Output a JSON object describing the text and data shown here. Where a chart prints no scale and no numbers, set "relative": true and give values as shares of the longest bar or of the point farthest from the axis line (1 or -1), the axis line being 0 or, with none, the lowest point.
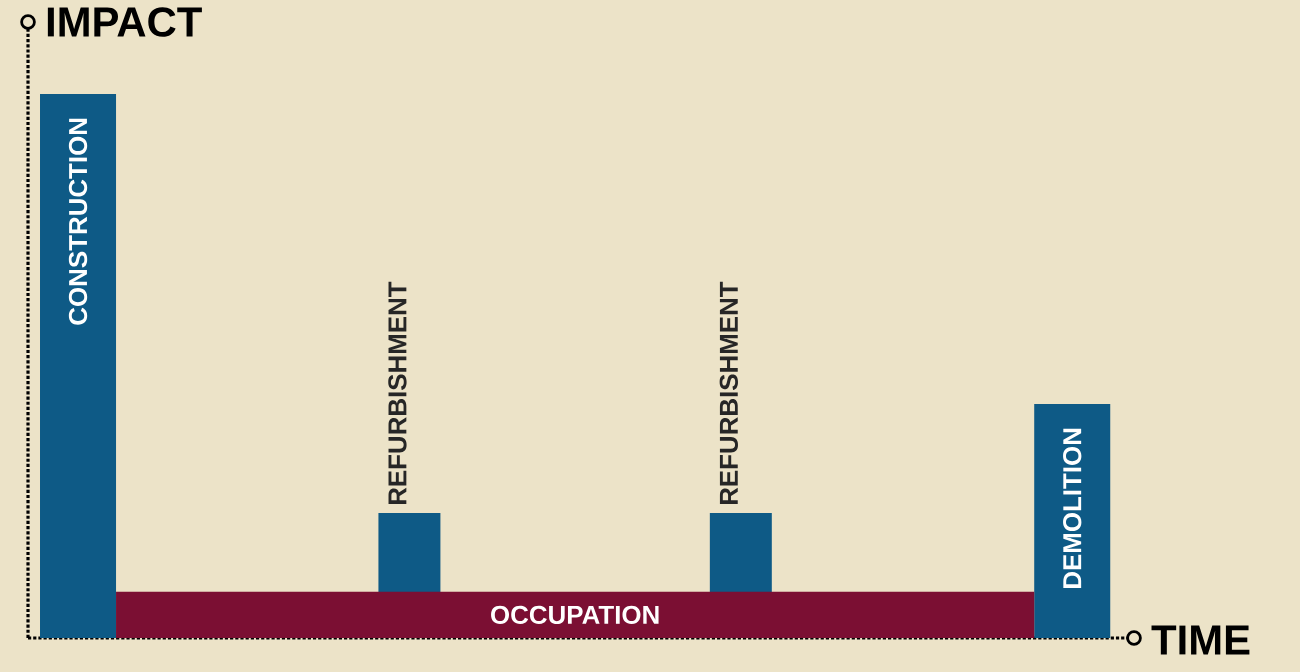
{
  "chart_data": {
    "type": "bar",
    "relative": true,
    "xlabel": "TIME",
    "ylabel": "IMPACT",
    "categories": [
      "CONSTRUCTION",
      "REFURBISHMENT",
      "REFURBISHMENT",
      "DEMOLITION"
    ],
    "values": [
      1,
      0.23,
      0.23,
      0.43
    ],
    "colors": [
      "#0e5a86",
      "#0e5a86",
      "#0e5a86",
      "#0e5a86"
    ],
    "bands": [
      {
        "axis": "y",
        "from": 0,
        "to": 0.085,
        "label": "OCCUPATION",
        "color": "#7b0f33"
      }
    ]
  }
}
